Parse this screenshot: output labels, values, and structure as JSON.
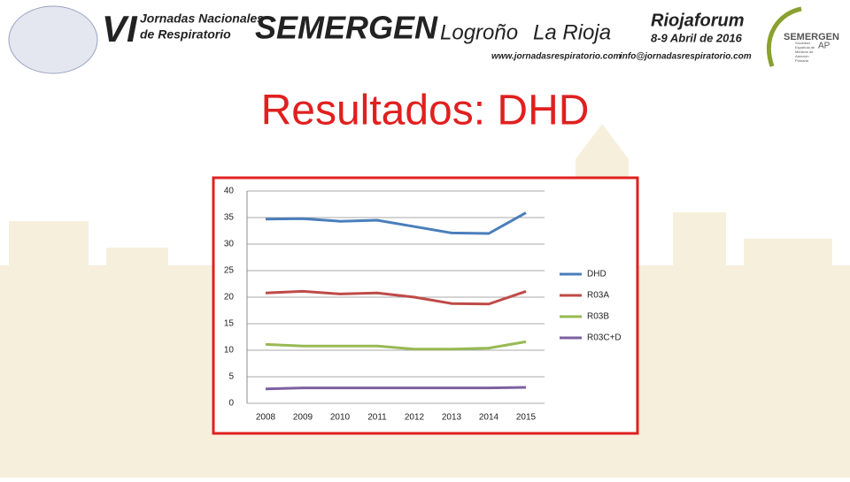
{
  "header": {
    "edition": "VI",
    "event_line1": "Jornadas Nacionales",
    "event_line2": "de Respiratorio",
    "brand": "SEMERGEN",
    "city": "Logroño",
    "region": "La Rioja",
    "venue": "Riojaforum",
    "dates": "8-9 Abril de 2016",
    "web": "www.jornadasrespiratorio.com",
    "email": "info@jornadasrespiratorio.com",
    "logo_name": "SEMERGEN",
    "logo_suffix": "AP",
    "logo_caption": "Sociedad Española de Médicos de Atención Primaria"
  },
  "chart_data": {
    "type": "line",
    "title": "Resultados: DHD",
    "categories": [
      "2008",
      "2009",
      "2010",
      "2011",
      "2012",
      "2013",
      "2014",
      "2015"
    ],
    "series": [
      {
        "name": "DHD",
        "color": "#4a7ebb",
        "values": [
          34.7,
          34.8,
          34.3,
          34.5,
          33.3,
          32.1,
          32.0,
          35.9
        ]
      },
      {
        "name": "R03A",
        "color": "#be4b48",
        "values": [
          20.8,
          21.1,
          20.6,
          20.8,
          20.0,
          18.8,
          18.7,
          21.1
        ]
      },
      {
        "name": "R03B",
        "color": "#98b954",
        "values": [
          11.1,
          10.8,
          10.8,
          10.8,
          10.2,
          10.2,
          10.4,
          11.6
        ]
      },
      {
        "name": "R03C+D",
        "color": "#7d60a0",
        "values": [
          2.7,
          2.9,
          2.9,
          2.9,
          2.9,
          2.9,
          2.9,
          3.0
        ]
      }
    ],
    "ylim": [
      0,
      40
    ],
    "yticks": [
      0,
      5,
      10,
      15,
      20,
      25,
      30,
      35,
      40
    ],
    "grid": true,
    "legend": "right"
  }
}
